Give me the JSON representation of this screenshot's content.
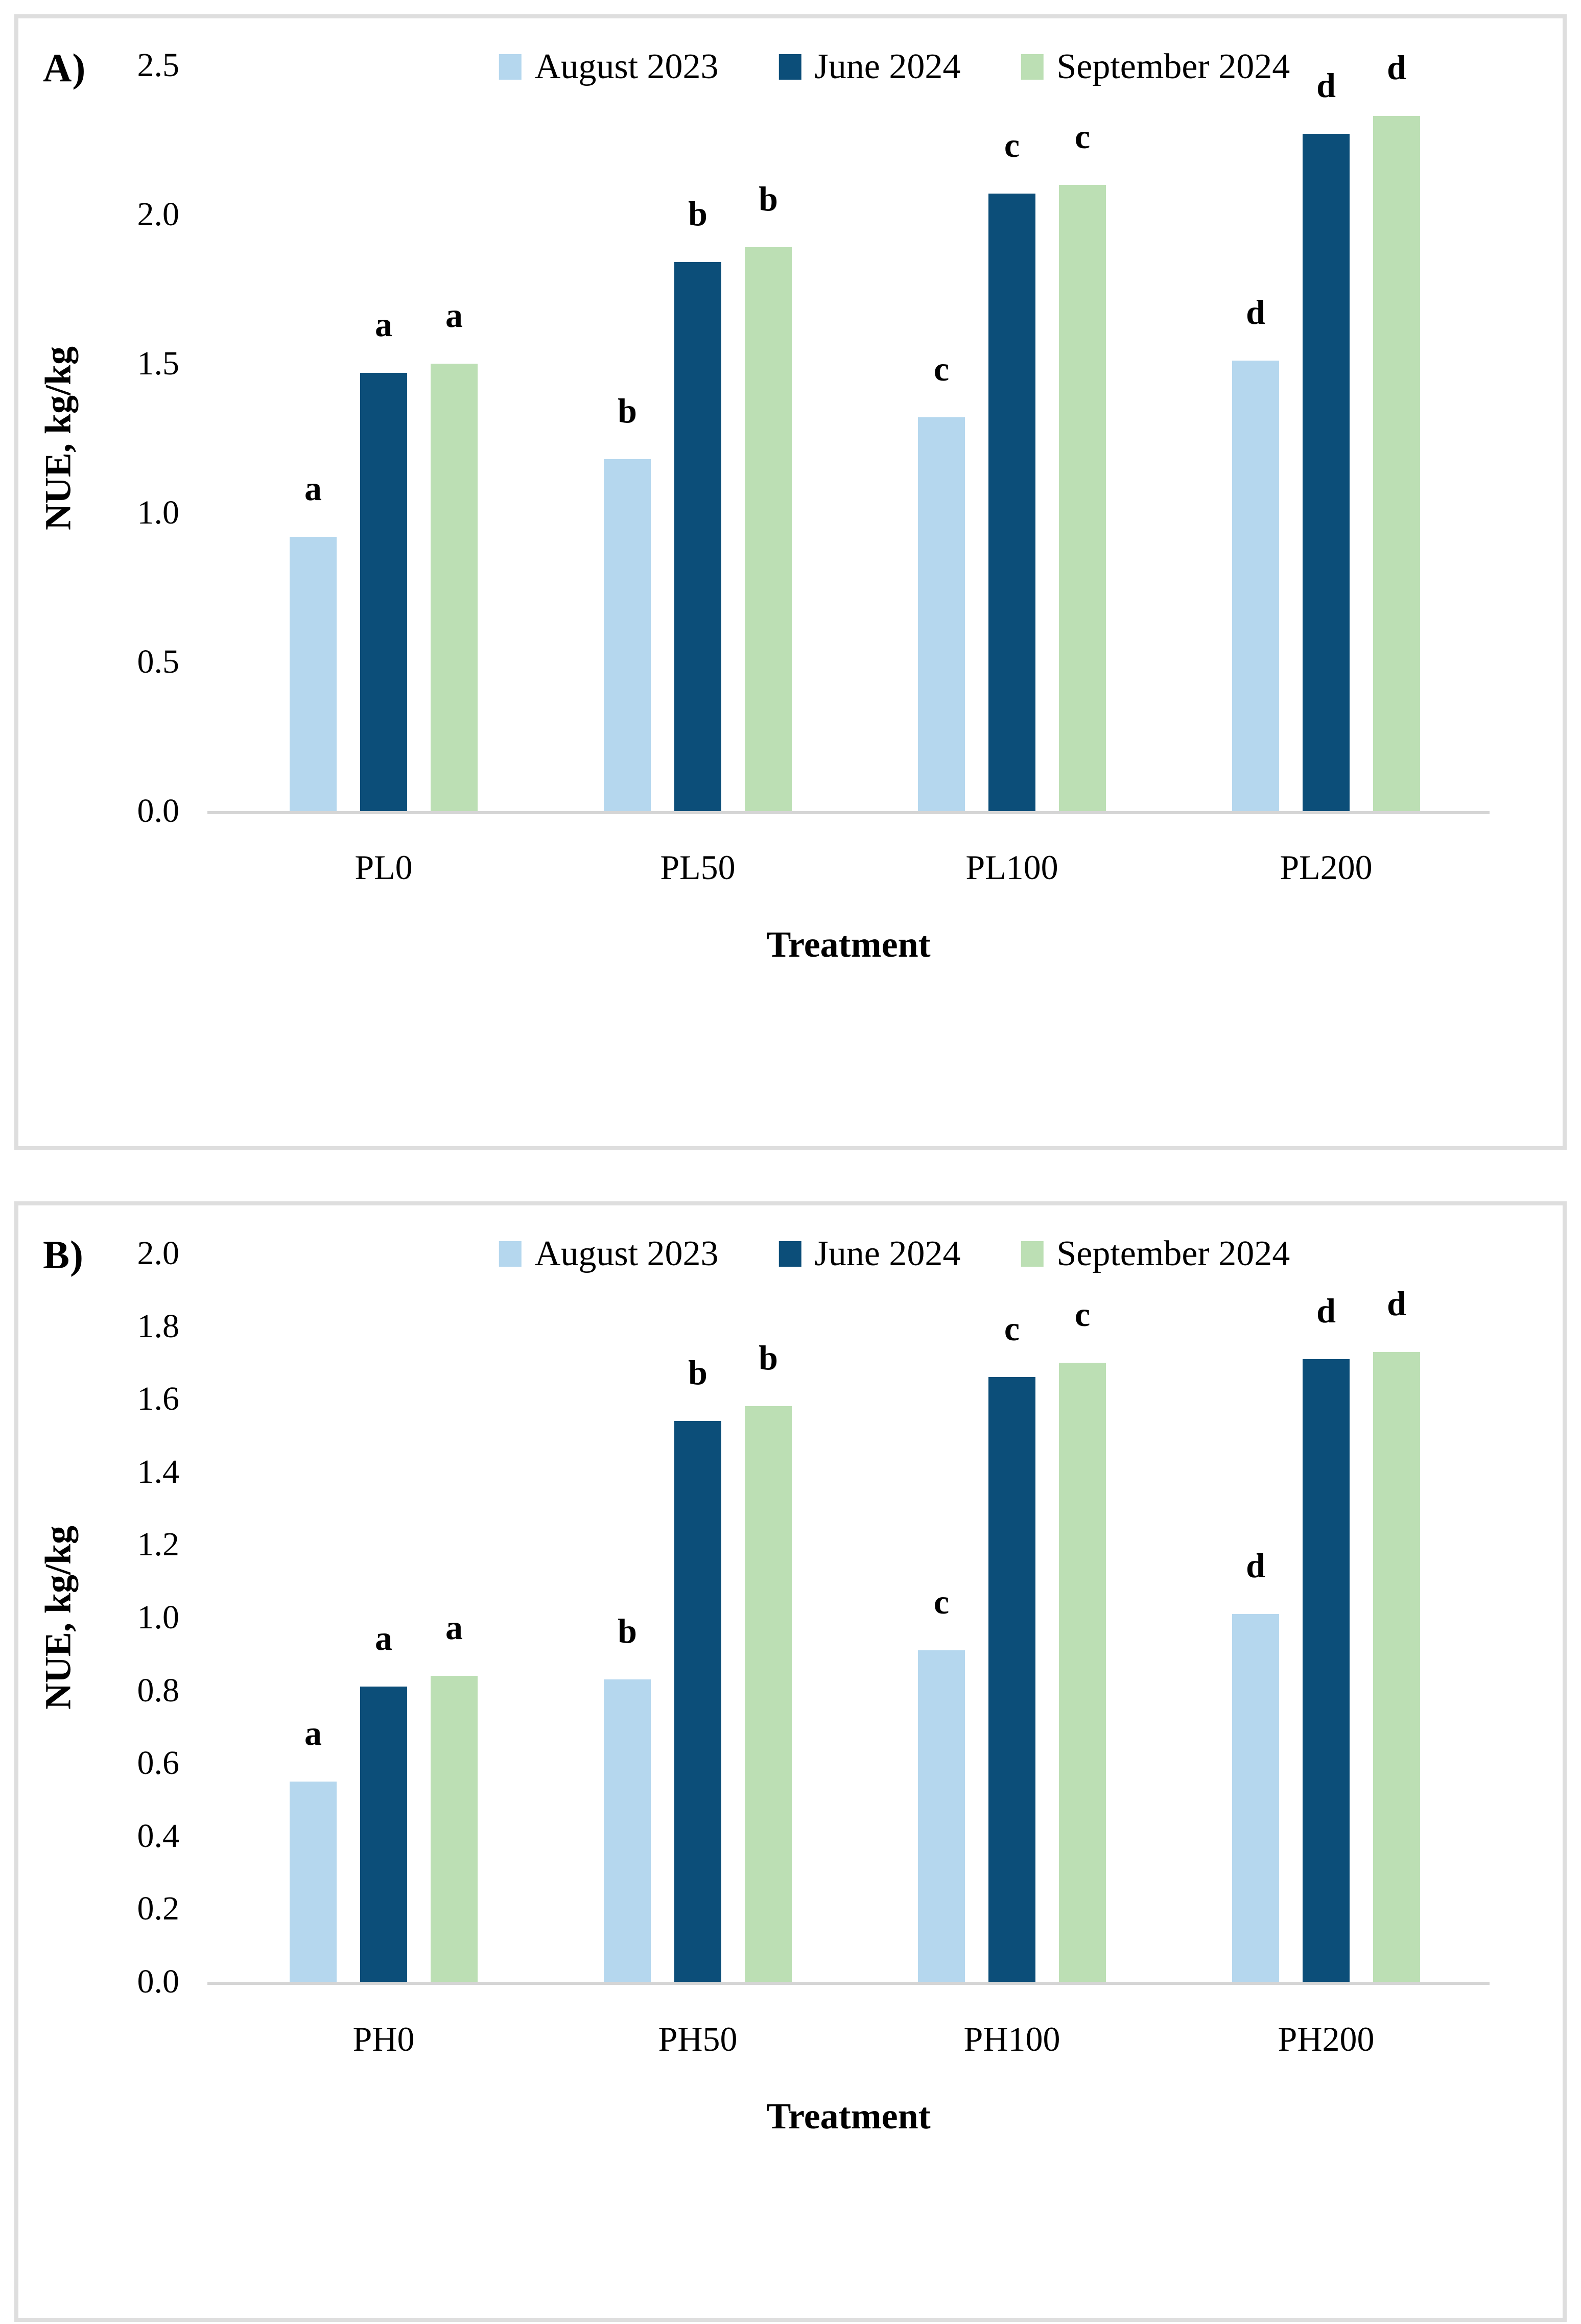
{
  "page": {
    "background": "#ffffff",
    "panel_border_color": "#dedede",
    "axis_line_color": "#d5d5d5",
    "text_color": "#000000"
  },
  "chart_data": [
    {
      "type": "bar",
      "panel_label": "A)",
      "title": "",
      "xlabel": "Treatment",
      "ylabel": "NUE, kg/kg",
      "ylim": [
        0,
        2.5
      ],
      "ytick_step": 0.5,
      "ytick_labels": [
        "0.0",
        "0.5",
        "1.0",
        "1.5",
        "2.0",
        "2.5"
      ],
      "grid": false,
      "legend_position": "top",
      "categories": [
        "PL0",
        "PL50",
        "PL100",
        "PL200"
      ],
      "series": [
        {
          "name": "August 2023",
          "color": "#B5D7EE",
          "values": [
            0.92,
            1.18,
            1.32,
            1.51
          ],
          "letters": [
            "a",
            "b",
            "c",
            "d"
          ]
        },
        {
          "name": "June 2024",
          "color": "#0C4E79",
          "values": [
            1.47,
            1.84,
            2.07,
            2.27
          ],
          "letters": [
            "a",
            "b",
            "c",
            "d"
          ]
        },
        {
          "name": "September 2024",
          "color": "#BCDFB4",
          "values": [
            1.5,
            1.89,
            2.1,
            2.33
          ],
          "letters": [
            "a",
            "b",
            "c",
            "d"
          ]
        }
      ]
    },
    {
      "type": "bar",
      "panel_label": "B)",
      "title": "",
      "xlabel": "Treatment",
      "ylabel": "NUE, kg/kg",
      "ylim": [
        0,
        2.0
      ],
      "ytick_step": 0.2,
      "ytick_labels": [
        "0.0",
        "0.2",
        "0.4",
        "0.6",
        "0.8",
        "1.0",
        "1.2",
        "1.4",
        "1.6",
        "1.8",
        "2.0"
      ],
      "grid": false,
      "legend_position": "top",
      "categories": [
        "PH0",
        "PH50",
        "PH100",
        "PH200"
      ],
      "series": [
        {
          "name": "August 2023",
          "color": "#B5D7EE",
          "values": [
            0.55,
            0.83,
            0.91,
            1.01
          ],
          "letters": [
            "a",
            "b",
            "c",
            "d"
          ]
        },
        {
          "name": "June 2024",
          "color": "#0C4E79",
          "values": [
            0.81,
            1.54,
            1.66,
            1.71
          ],
          "letters": [
            "a",
            "b",
            "c",
            "d"
          ]
        },
        {
          "name": "September 2024",
          "color": "#BCDFB4",
          "values": [
            0.84,
            1.58,
            1.7,
            1.73
          ],
          "letters": [
            "a",
            "b",
            "c",
            "d"
          ]
        }
      ]
    }
  ]
}
